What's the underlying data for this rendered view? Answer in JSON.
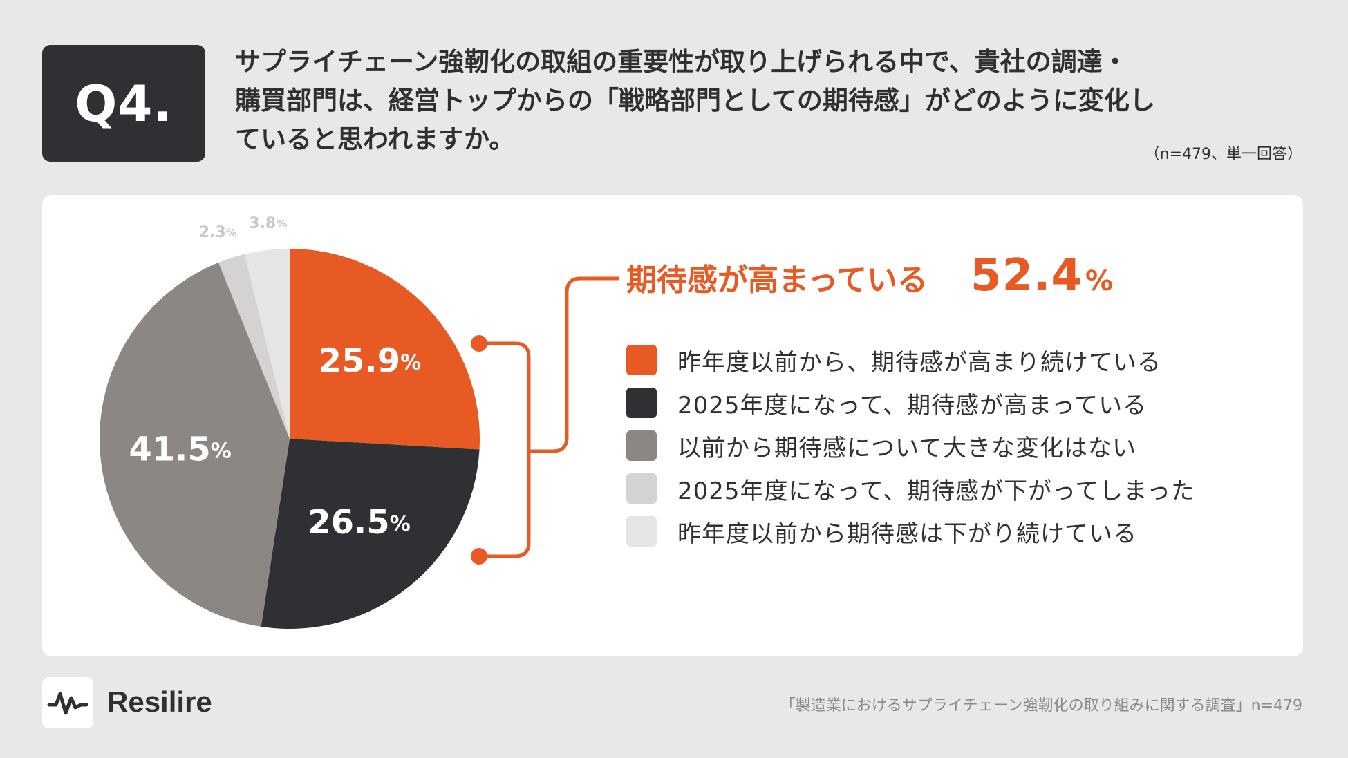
{
  "badge": "Q4.",
  "question": [
    "サプライチェーン強靭化の取組の重要性が取り上げられる中で、貴社の調達・",
    "購買部門は、経営トップからの「戦略部門としての期待感」がどのように変化し",
    "ていると思われますか。"
  ],
  "note": "（n=479、単一回答）",
  "chart_data": {
    "type": "pie",
    "unit": "%",
    "categories": [
      "昨年度以前から、期待感が高まり続けている",
      "2025年度になって、期待感が高まっている",
      "以前から期待感について大きな変化はない",
      "2025年度になって、期待感が下がってしまった",
      "昨年度以前から期待感は下がり続けている"
    ],
    "values": [
      25.9,
      26.5,
      41.5,
      2.3,
      3.8
    ],
    "labels": [
      "25.9",
      "26.5",
      "41.5",
      "2.3",
      "3.8"
    ],
    "colors": [
      "#e85a24",
      "#2e3033",
      "#8c8782",
      "#d4d3d1",
      "#e6e5e3"
    ],
    "label_colors": [
      "#ffffff",
      "#ffffff",
      "#ffffff",
      "#c8c8c8",
      "#c8c8c8"
    ],
    "legend_placement": "right",
    "highlight": {
      "label": "期待感が高まっている",
      "value": "52.4",
      "unit": "%",
      "color": "#e85a24"
    }
  },
  "brand": {
    "name": "Resilire",
    "logo_icon": "waveform-icon"
  },
  "source": "「製造業におけるサプライチェーン強靭化の取り組みに関する調査」n=479"
}
